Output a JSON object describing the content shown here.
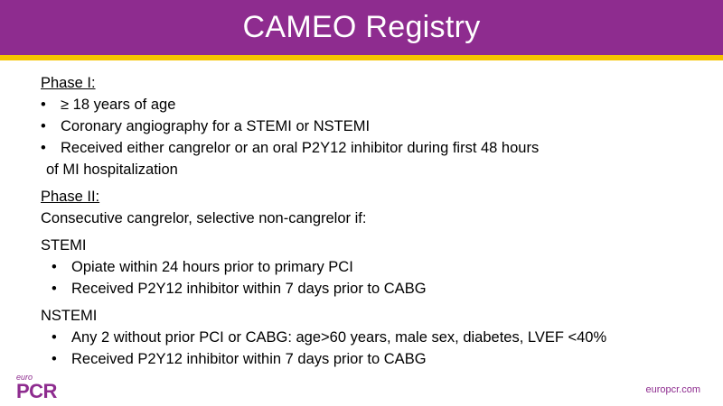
{
  "header": {
    "title": "CAMEO Registry",
    "bar_color": "#8e2c8f",
    "stripe_color": "#f5c400"
  },
  "phase1": {
    "heading": "Phase I:",
    "items": [
      "≥ 18 years of age",
      "Coronary angiography for a STEMI or NSTEMI",
      "Received either cangrelor or an oral P2Y12 inhibitor during first 48 hours"
    ],
    "continuation": "of MI hospitalization"
  },
  "phase2": {
    "heading": "Phase II:",
    "intro": "Consecutive cangrelor, selective non-cangrelor if:",
    "stemi": {
      "label": "STEMI",
      "items": [
        "Opiate within 24 hours prior to primary PCI",
        "Received P2Y12 inhibitor within 7 days prior to CABG"
      ]
    },
    "nstemi": {
      "label": "NSTEMI",
      "items": [
        "Any 2 without prior PCI or CABG: age>60 years, male sex, diabetes, LVEF <40%",
        "Received P2Y12 inhibitor within 7 days prior to CABG"
      ]
    }
  },
  "footer": {
    "logo_small": "euro",
    "logo_main": "PCR",
    "website": "europcr.com"
  }
}
